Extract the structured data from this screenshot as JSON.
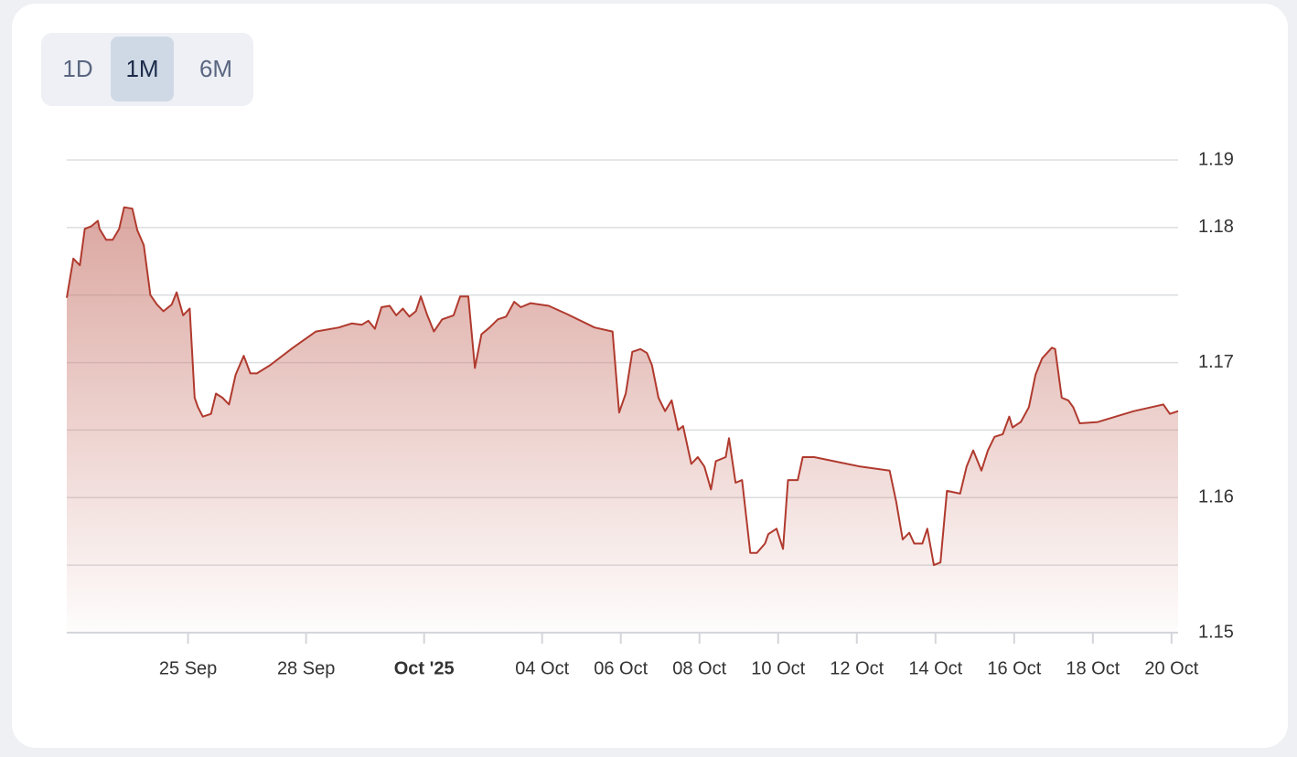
{
  "chart_data": {
    "type": "area",
    "range_selector": {
      "options": [
        "1D",
        "1M",
        "6M"
      ],
      "selected": "1M"
    },
    "xlim": [
      "2025-09-21T22:00",
      "2025-10-20T04:00"
    ],
    "xticks": [
      {
        "value": "2025-09-25",
        "label": "25 Sep"
      },
      {
        "value": "2025-09-28",
        "label": "28 Sep"
      },
      {
        "value": "2025-10-01",
        "label": "Oct '25",
        "emphasis": true
      },
      {
        "value": "2025-10-04",
        "label": "04 Oct"
      },
      {
        "value": "2025-10-06",
        "label": "06 Oct"
      },
      {
        "value": "2025-10-08",
        "label": "08 Oct"
      },
      {
        "value": "2025-10-10",
        "label": "10 Oct"
      },
      {
        "value": "2025-10-12",
        "label": "12 Oct"
      },
      {
        "value": "2025-10-14",
        "label": "14 Oct"
      },
      {
        "value": "2025-10-16",
        "label": "16 Oct"
      },
      {
        "value": "2025-10-18",
        "label": "18 Oct"
      },
      {
        "value": "2025-10-20",
        "label": "20 Oct"
      }
    ],
    "ylim": [
      1.15,
      1.185
    ],
    "yticks": [
      {
        "value": 1.185,
        "label": "1.19"
      },
      1.18,
      1.17,
      1.16,
      1.15
    ],
    "ygrid": [
      1.15,
      1.155,
      1.16,
      1.165,
      1.17,
      1.175,
      1.18,
      1.185
    ],
    "grid": true,
    "x": [
      "2025-09-21T22:00",
      "2025-09-22T02:00",
      "2025-09-22T06:00",
      "2025-09-22T09:00",
      "2025-09-22T13:00",
      "2025-09-22T17:00",
      "2025-09-22T18:00",
      "2025-09-22T22:00",
      "2025-09-23T02:00",
      "2025-09-23T06:00",
      "2025-09-23T09:00",
      "2025-09-23T14:00",
      "2025-09-23T17:00",
      "2025-09-23T21:00",
      "2025-09-24T01:00",
      "2025-09-24T05:00",
      "2025-09-24T09:00",
      "2025-09-24T14:00",
      "2025-09-24T17:00",
      "2025-09-24T21:00",
      "2025-09-25T01:00",
      "2025-09-25T04:00",
      "2025-09-25T06:00",
      "2025-09-25T09:00",
      "2025-09-25T14:00",
      "2025-09-25T17:00",
      "2025-09-25T21:00",
      "2025-09-26T01:00",
      "2025-09-26T05:00",
      "2025-09-26T10:00",
      "2025-09-26T14:00",
      "2025-09-26T18:00",
      "2025-09-27T02:00",
      "2025-09-27T16:00",
      "2025-09-28T06:00",
      "2025-09-28T20:00",
      "2025-09-29T04:00",
      "2025-09-29T10:00",
      "2025-09-29T14:00",
      "2025-09-29T18:00",
      "2025-09-29T22:00",
      "2025-09-30T03:00",
      "2025-09-30T07:00",
      "2025-09-30T11:00",
      "2025-09-30T15:00",
      "2025-09-30T19:00",
      "2025-09-30T22:00",
      "2025-10-01T02:00",
      "2025-10-01T06:00",
      "2025-10-01T11:00",
      "2025-10-01T18:00",
      "2025-10-01T22:00",
      "2025-10-02T03:00",
      "2025-10-02T07:00",
      "2025-10-02T11:00",
      "2025-10-02T16:00",
      "2025-10-02T21:00",
      "2025-10-03T02:00",
      "2025-10-03T07:00",
      "2025-10-03T11:00",
      "2025-10-03T17:00",
      "2025-10-04T04:00",
      "2025-10-04T15:00",
      "2025-10-05T08:00",
      "2025-10-05T19:00",
      "2025-10-05T23:00",
      "2025-10-06T03:00",
      "2025-10-06T07:00",
      "2025-10-06T12:00",
      "2025-10-06T16:00",
      "2025-10-06T19:00",
      "2025-10-06T23:00",
      "2025-10-07T03:00",
      "2025-10-07T07:00",
      "2025-10-07T11:00",
      "2025-10-07T14:00",
      "2025-10-07T19:00",
      "2025-10-07T23:00",
      "2025-10-08T03:00",
      "2025-10-08T07:00",
      "2025-10-08T10:00",
      "2025-10-08T16:00",
      "2025-10-08T18:00",
      "2025-10-08T22:00",
      "2025-10-09T02:00",
      "2025-10-09T07:00",
      "2025-10-09T11:00",
      "2025-10-09T16:00",
      "2025-10-09T18:00",
      "2025-10-09T23:00",
      "2025-10-10T03:00",
      "2025-10-10T06:00",
      "2025-10-10T12:00",
      "2025-10-10T15:00",
      "2025-10-10T22:00",
      "2025-10-12T02:00",
      "2025-10-12T20:00",
      "2025-10-13T00:00",
      "2025-10-13T04:00",
      "2025-10-13T08:00",
      "2025-10-13T11:00",
      "2025-10-13T16:00",
      "2025-10-13T19:00",
      "2025-10-13T23:00",
      "2025-10-14T03:00",
      "2025-10-14T07:00",
      "2025-10-14T15:00",
      "2025-10-14T19:00",
      "2025-10-14T23:00",
      "2025-10-15T04:00",
      "2025-10-15T08:00",
      "2025-10-15T12:00",
      "2025-10-15T17:00",
      "2025-10-15T21:00",
      "2025-10-15T23:00",
      "2025-10-16T04:00",
      "2025-10-16T09:00",
      "2025-10-16T13:00",
      "2025-10-16T17:00",
      "2025-10-16T23:00",
      "2025-10-17T01:00",
      "2025-10-17T05:00",
      "2025-10-17T09:00",
      "2025-10-17T12:00",
      "2025-10-17T16:00",
      "2025-10-18T03:00",
      "2025-10-19T01:00",
      "2025-10-19T19:00",
      "2025-10-19T23:00",
      "2025-10-20T04:00"
    ],
    "series": [
      {
        "color": "#b03a2e",
        "values": [
          1.1748,
          1.1777,
          1.1772,
          1.1799,
          1.1801,
          1.1805,
          1.1799,
          1.1791,
          1.1791,
          1.1799,
          1.1815,
          1.1814,
          1.1798,
          1.1787,
          1.175,
          1.1743,
          1.1738,
          1.1743,
          1.1752,
          1.1735,
          1.174,
          1.1674,
          1.1667,
          1.166,
          1.1662,
          1.1677,
          1.1674,
          1.1669,
          1.1691,
          1.1705,
          1.1692,
          1.1692,
          1.1698,
          1.1711,
          1.1723,
          1.1726,
          1.1729,
          1.1728,
          1.1731,
          1.1725,
          1.1741,
          1.1742,
          1.1735,
          1.174,
          1.1734,
          1.1738,
          1.1749,
          1.1735,
          1.1723,
          1.1732,
          1.1735,
          1.1749,
          1.1749,
          1.1696,
          1.1721,
          1.1726,
          1.1732,
          1.1734,
          1.1745,
          1.1741,
          1.1744,
          1.1742,
          1.1736,
          1.1726,
          1.1723,
          1.1663,
          1.1677,
          1.1708,
          1.171,
          1.1707,
          1.1698,
          1.1674,
          1.1664,
          1.1672,
          1.165,
          1.1653,
          1.1625,
          1.163,
          1.1623,
          1.1606,
          1.1627,
          1.163,
          1.1644,
          1.1611,
          1.1613,
          1.1559,
          1.1559,
          1.1566,
          1.1573,
          1.1577,
          1.1562,
          1.1613,
          1.1613,
          1.163,
          1.163,
          1.1623,
          1.162,
          1.1597,
          1.1569,
          1.1574,
          1.1566,
          1.1566,
          1.1577,
          1.155,
          1.1552,
          1.1605,
          1.1603,
          1.1623,
          1.1635,
          1.162,
          1.1635,
          1.1645,
          1.1647,
          1.166,
          1.1652,
          1.1656,
          1.1667,
          1.1691,
          1.1703,
          1.1711,
          1.171,
          1.1674,
          1.1672,
          1.1667,
          1.1655,
          1.1656,
          1.1664,
          1.1669,
          1.1662,
          1.1664
        ]
      }
    ]
  }
}
